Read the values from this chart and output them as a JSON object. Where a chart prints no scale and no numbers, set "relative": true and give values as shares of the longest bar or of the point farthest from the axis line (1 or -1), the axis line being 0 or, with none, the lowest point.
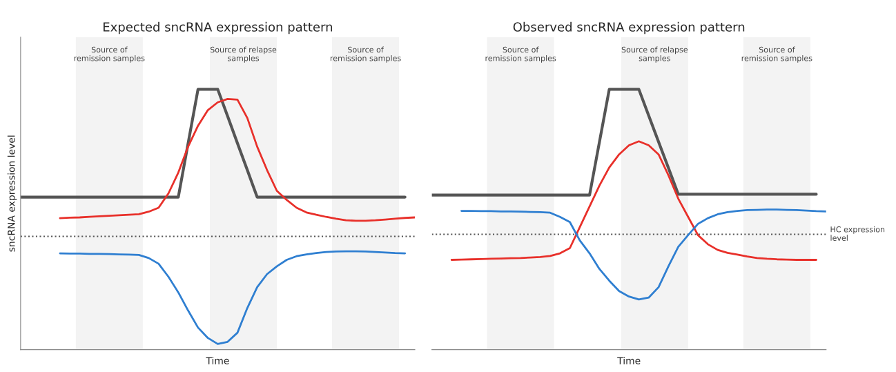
{
  "chart_data": [
    {
      "type": "line",
      "title": "Expected sncRNA expression pattern",
      "xlabel": "Time",
      "ylabel": "sncRNA expression level",
      "relative": true,
      "categories": [
        null,
        null,
        null,
        null,
        null,
        null,
        null,
        null,
        null,
        null,
        null,
        null,
        null,
        null,
        null,
        null,
        null,
        null,
        null,
        null,
        null,
        null,
        null,
        null,
        null,
        null,
        null,
        null,
        null,
        null,
        null,
        null,
        null,
        null,
        null,
        null,
        null,
        null,
        null,
        null,
        null
      ],
      "series": [
        {
          "color": "#555555",
          "values": [
            0.586,
            0.586,
            0.586,
            0.586,
            0.586,
            0.586,
            0.586,
            0.586,
            0.586,
            0.586,
            0.586,
            0.586,
            0.586,
            0.586,
            0.586,
            0.586,
            0.586,
            0.793,
            1.0,
            1.0,
            1.0,
            0.897,
            0.793,
            0.69,
            0.586,
            0.586,
            0.586,
            0.586,
            0.586,
            0.586,
            0.586,
            0.586,
            0.586,
            0.586,
            0.586,
            0.586,
            0.586,
            0.586,
            0.586,
            0.586,
            null
          ]
        },
        {
          "color": "#e8302a",
          "values": [
            null,
            null,
            null,
            null,
            0.505,
            0.507,
            0.508,
            0.51,
            0.512,
            0.514,
            0.516,
            0.518,
            0.52,
            0.53,
            0.545,
            0.6,
            0.68,
            0.78,
            0.86,
            0.92,
            0.95,
            0.963,
            0.96,
            0.89,
            0.78,
            0.69,
            0.61,
            0.575,
            0.545,
            0.527,
            0.518,
            0.51,
            0.503,
            0.497,
            0.495,
            0.495,
            0.497,
            0.5,
            0.503,
            0.506,
            0.508
          ]
        },
        {
          "color": "#2f7fd1",
          "values": [
            null,
            null,
            null,
            null,
            0.37,
            0.369,
            0.369,
            0.368,
            0.368,
            0.367,
            0.366,
            0.365,
            0.364,
            0.352,
            0.33,
            0.28,
            0.22,
            0.15,
            0.085,
            0.045,
            0.022,
            0.03,
            0.065,
            0.16,
            0.24,
            0.29,
            0.32,
            0.345,
            0.359,
            0.366,
            0.371,
            0.375,
            0.377,
            0.378,
            0.378,
            0.377,
            0.375,
            0.373,
            0.371,
            0.37,
            null
          ]
        }
      ],
      "ref_lines": [
        {
          "axis": "y",
          "value": 0.435,
          "color": "#555555",
          "line_style": "dotted"
        }
      ],
      "annotations": [
        "Source of\nremission samples",
        "Source of relapse\nsamples",
        "Source of\nremission samples"
      ]
    },
    {
      "type": "line",
      "title": "Observed sncRNA expression pattern",
      "xlabel": "Time",
      "relative": true,
      "categories": [
        null,
        null,
        null,
        null,
        null,
        null,
        null,
        null,
        null,
        null,
        null,
        null,
        null,
        null,
        null,
        null,
        null,
        null,
        null,
        null,
        null,
        null,
        null,
        null,
        null,
        null,
        null,
        null,
        null,
        null,
        null,
        null,
        null,
        null,
        null,
        null,
        null,
        null,
        null,
        null,
        null
      ],
      "series": [
        {
          "color": "#555555",
          "values": [
            0.594,
            0.594,
            0.594,
            0.594,
            0.594,
            0.594,
            0.594,
            0.594,
            0.594,
            0.594,
            0.594,
            0.594,
            0.594,
            0.594,
            0.594,
            0.594,
            0.594,
            0.797,
            1.0,
            1.0,
            1.0,
            1.0,
            0.899,
            0.798,
            0.698,
            0.597,
            0.597,
            0.597,
            0.597,
            0.597,
            0.597,
            0.597,
            0.597,
            0.597,
            0.597,
            0.597,
            0.597,
            0.597,
            0.597,
            0.597,
            null
          ]
        },
        {
          "color": "#e8302a",
          "values": [
            null,
            null,
            0.345,
            0.346,
            0.347,
            0.348,
            0.349,
            0.35,
            0.351,
            0.352,
            0.354,
            0.356,
            0.36,
            0.37,
            0.39,
            0.47,
            0.55,
            0.63,
            0.7,
            0.75,
            0.785,
            0.8,
            0.785,
            0.75,
            0.67,
            0.58,
            0.51,
            0.44,
            0.405,
            0.383,
            0.372,
            0.365,
            0.358,
            0.352,
            0.349,
            0.347,
            0.346,
            0.345,
            0.345,
            0.345,
            null
          ]
        },
        {
          "color": "#2f7fd1",
          "values": [
            null,
            null,
            null,
            0.533,
            0.533,
            0.532,
            0.532,
            0.531,
            0.531,
            0.53,
            0.529,
            0.528,
            0.526,
            0.51,
            0.49,
            0.42,
            0.37,
            0.31,
            0.265,
            0.225,
            0.204,
            0.193,
            0.2,
            0.24,
            0.32,
            0.395,
            0.44,
            0.483,
            0.505,
            0.52,
            0.528,
            0.533,
            0.536,
            0.537,
            0.538,
            0.538,
            0.537,
            0.536,
            0.534,
            0.532,
            0.531
          ]
        }
      ],
      "ref_lines": [
        {
          "axis": "y",
          "value": 0.443,
          "label": "HC expression\nlevel",
          "color": "#555555",
          "line_style": "dotted"
        }
      ],
      "annotations": [
        "Source of\nremission samples",
        "Source of relapse\nsamples",
        "Source of\nremission samples"
      ]
    }
  ]
}
